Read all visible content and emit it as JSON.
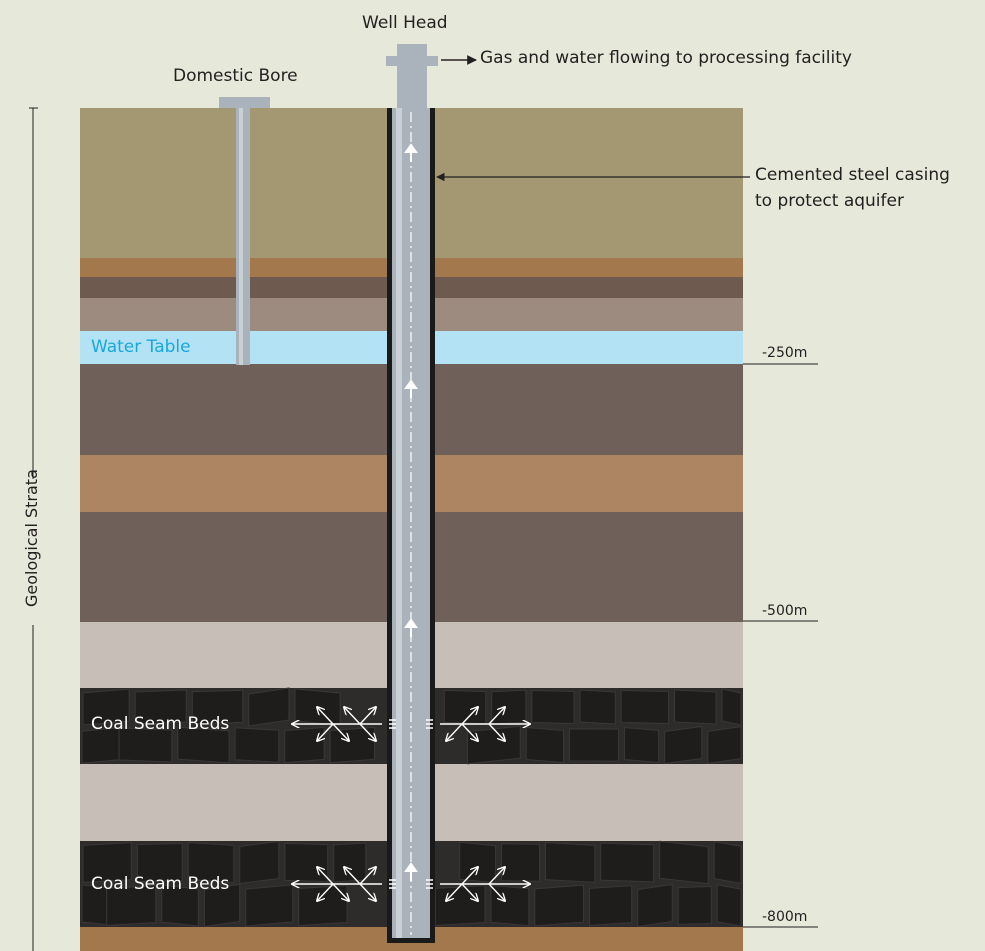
{
  "labels": {
    "well_head": "Well Head",
    "domestic_bore": "Domestic Bore",
    "gas_flow": "Gas and water flowing to processing facility",
    "casing_line1": "Cemented steel casing",
    "casing_line2": "to protect aquifer",
    "water_table": "Water Table",
    "coal_seam_1": "Coal Seam Beds",
    "coal_seam_2": "Coal Seam Beds",
    "geological_strata": "Geological Strata"
  },
  "depth_markers": [
    "-250m",
    "-500m",
    "-800m"
  ],
  "layers": [
    {
      "name": "topsoil",
      "color": "#a39872"
    },
    {
      "name": "thin-band",
      "color": "#a3784d"
    },
    {
      "name": "dark-band",
      "color": "#6e5a4f"
    },
    {
      "name": "mauve-band",
      "color": "#9e8b80"
    },
    {
      "name": "aquifer",
      "color": "#b3e2f5"
    },
    {
      "name": "mudstone",
      "color": "#70605a"
    },
    {
      "name": "sandstone",
      "color": "#ad8563"
    },
    {
      "name": "mudstone-2",
      "color": "#70605a"
    },
    {
      "name": "siltstone",
      "color": "#c8beb8"
    },
    {
      "name": "coal-seam",
      "color": "#2e2c2b"
    },
    {
      "name": "siltstone-2",
      "color": "#c8beb8"
    },
    {
      "name": "coal-seam-2",
      "color": "#2e2c2b"
    },
    {
      "name": "basement",
      "color": "#a3784d"
    }
  ],
  "colors": {
    "background": "#e6e8da",
    "pipe": "#aab3bb",
    "pipe_highlight": "#c9d0d6",
    "casing": "#1a1a1a",
    "label_text": "#231f20",
    "water_text": "#1aa7dc",
    "coal_block": "#1f1d1c"
  },
  "icons": [
    "flow-up-arrow-icon",
    "fracture-arrow-icon",
    "right-arrow-icon"
  ]
}
